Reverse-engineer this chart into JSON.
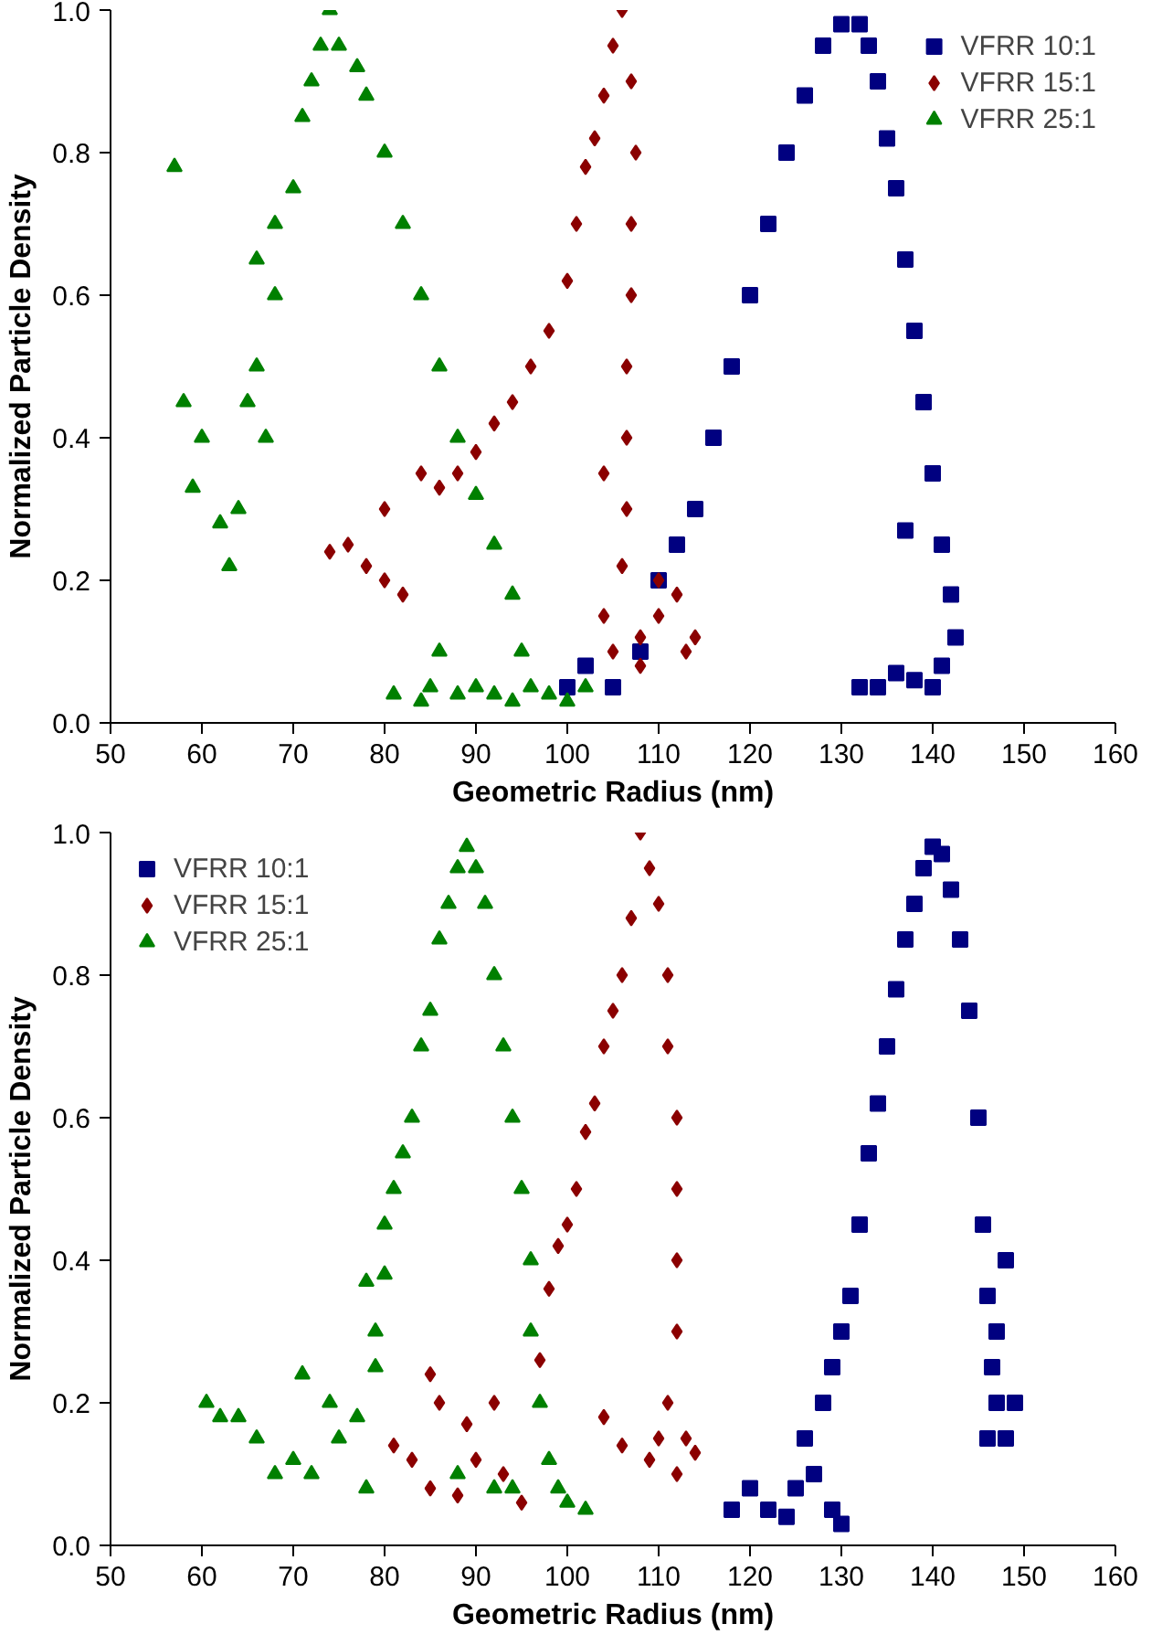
{
  "chart_data": [
    {
      "type": "scatter",
      "xlabel": "Geometric Radius (nm)",
      "ylabel": "Normalized Particle Density",
      "xlim": [
        50,
        160
      ],
      "ylim": [
        0,
        1
      ],
      "xticks": [
        50,
        60,
        70,
        80,
        90,
        100,
        110,
        120,
        130,
        140,
        150,
        160
      ],
      "yticks": [
        {
          "value": 0,
          "label": "0.0"
        },
        {
          "value": 0.2,
          "label": "0.2"
        },
        {
          "value": 0.4,
          "label": "0.4"
        },
        {
          "value": 0.6,
          "label": "0.6"
        },
        {
          "value": 0.8,
          "label": "0.8"
        },
        {
          "value": 1,
          "label": "1.0"
        }
      ],
      "grid": false,
      "legend": "top right",
      "series": [
        {
          "name": "VFRR 10:1",
          "color": "#000080",
          "marker": "square",
          "x": [
            100,
            102,
            105,
            108,
            110,
            112,
            114,
            116,
            118,
            120,
            122,
            124,
            126,
            128,
            130,
            132,
            133,
            134,
            135,
            136,
            137,
            138,
            139,
            140,
            141,
            142,
            142.5,
            141,
            140,
            138,
            136,
            134,
            132,
            137
          ],
          "values": [
            0.05,
            0.08,
            0.05,
            0.1,
            0.2,
            0.25,
            0.3,
            0.4,
            0.5,
            0.6,
            0.7,
            0.8,
            0.88,
            0.95,
            0.98,
            0.98,
            0.95,
            0.9,
            0.82,
            0.75,
            0.65,
            0.55,
            0.45,
            0.35,
            0.25,
            0.18,
            0.12,
            0.08,
            0.05,
            0.06,
            0.07,
            0.05,
            0.05,
            0.27
          ]
        },
        {
          "name": "VFRR 15:1",
          "color": "#8b0000",
          "marker": "diamond",
          "x": [
            74,
            76,
            78,
            80,
            82,
            80,
            84,
            86,
            88,
            90,
            92,
            94,
            96,
            98,
            100,
            101,
            102,
            103,
            104,
            105,
            106,
            107,
            107.5,
            107,
            107,
            106.5,
            106.5,
            106.5,
            106,
            104,
            105,
            108,
            110,
            112,
            114,
            113,
            110,
            108,
            104
          ],
          "values": [
            0.24,
            0.25,
            0.22,
            0.2,
            0.18,
            0.3,
            0.35,
            0.33,
            0.35,
            0.38,
            0.42,
            0.45,
            0.5,
            0.55,
            0.62,
            0.7,
            0.78,
            0.82,
            0.88,
            0.95,
            1.0,
            0.9,
            0.8,
            0.7,
            0.6,
            0.5,
            0.4,
            0.3,
            0.22,
            0.15,
            0.1,
            0.12,
            0.15,
            0.18,
            0.12,
            0.1,
            0.2,
            0.08,
            0.35
          ]
        },
        {
          "name": "VFRR 25:1",
          "color": "#008000",
          "marker": "triangle",
          "x": [
            57,
            58,
            59,
            60,
            62,
            63,
            64,
            65,
            66,
            67,
            68,
            66,
            68,
            70,
            71,
            72,
            73,
            74,
            75,
            77,
            78,
            80,
            82,
            84,
            86,
            88,
            90,
            92,
            94,
            95,
            96,
            98,
            100,
            102,
            92,
            88,
            85,
            84,
            81,
            86,
            90,
            94
          ],
          "values": [
            0.78,
            0.45,
            0.33,
            0.4,
            0.28,
            0.22,
            0.3,
            0.45,
            0.5,
            0.4,
            0.6,
            0.65,
            0.7,
            0.75,
            0.85,
            0.9,
            0.95,
            1.0,
            0.95,
            0.92,
            0.88,
            0.8,
            0.7,
            0.6,
            0.5,
            0.4,
            0.32,
            0.25,
            0.18,
            0.1,
            0.05,
            0.04,
            0.03,
            0.05,
            0.04,
            0.04,
            0.05,
            0.03,
            0.04,
            0.1,
            0.05,
            0.03
          ]
        }
      ]
    },
    {
      "type": "scatter",
      "xlabel": "Geometric Radius (nm)",
      "ylabel": "Normalized Particle Density",
      "xlim": [
        50,
        160
      ],
      "ylim": [
        0,
        1
      ],
      "xticks": [
        50,
        60,
        70,
        80,
        90,
        100,
        110,
        120,
        130,
        140,
        150,
        160
      ],
      "yticks": [
        {
          "value": 0,
          "label": "0.0"
        },
        {
          "value": 0.2,
          "label": "0.2"
        },
        {
          "value": 0.4,
          "label": "0.4"
        },
        {
          "value": 0.6,
          "label": "0.6"
        },
        {
          "value": 0.8,
          "label": "0.8"
        },
        {
          "value": 1,
          "label": "1.0"
        }
      ],
      "grid": false,
      "legend": "top left",
      "series": [
        {
          "name": "VFRR 10:1",
          "color": "#000080",
          "marker": "square",
          "x": [
            118,
            120,
            122,
            124,
            125,
            126,
            127,
            128,
            129,
            130,
            129,
            130,
            131,
            132,
            133,
            134,
            135,
            136,
            137,
            138,
            139,
            140,
            141,
            142,
            143,
            144,
            145,
            145.5,
            146,
            146.5,
            147,
            148,
            149,
            146,
            147,
            148
          ],
          "values": [
            0.05,
            0.08,
            0.05,
            0.04,
            0.08,
            0.15,
            0.1,
            0.2,
            0.05,
            0.03,
            0.25,
            0.3,
            0.35,
            0.45,
            0.55,
            0.62,
            0.7,
            0.78,
            0.85,
            0.9,
            0.95,
            0.98,
            0.97,
            0.92,
            0.85,
            0.75,
            0.6,
            0.45,
            0.35,
            0.25,
            0.2,
            0.15,
            0.2,
            0.15,
            0.3,
            0.4
          ]
        },
        {
          "name": "VFRR 15:1",
          "color": "#8b0000",
          "marker": "diamond",
          "x": [
            81,
            83,
            85,
            85,
            86,
            88,
            89,
            90,
            92,
            93,
            95,
            97,
            98,
            99,
            100,
            101,
            102,
            103,
            104,
            105,
            106,
            107,
            108,
            109,
            110,
            111,
            111,
            112,
            112,
            112,
            112,
            111,
            110,
            109,
            112,
            114,
            113,
            104,
            106
          ],
          "values": [
            0.14,
            0.12,
            0.24,
            0.08,
            0.2,
            0.07,
            0.17,
            0.12,
            0.2,
            0.1,
            0.06,
            0.26,
            0.36,
            0.42,
            0.45,
            0.5,
            0.58,
            0.62,
            0.7,
            0.75,
            0.8,
            0.88,
            1.0,
            0.95,
            0.9,
            0.8,
            0.7,
            0.6,
            0.5,
            0.4,
            0.3,
            0.2,
            0.15,
            0.12,
            0.1,
            0.13,
            0.15,
            0.18,
            0.14
          ]
        },
        {
          "name": "VFRR 25:1",
          "color": "#008000",
          "marker": "triangle",
          "x": [
            60.5,
            62,
            64,
            66,
            68,
            70,
            71,
            72,
            74,
            75,
            77,
            78,
            79,
            79,
            78,
            80,
            80,
            81,
            82,
            83,
            84,
            85,
            86,
            87,
            88,
            89,
            90,
            91,
            92,
            93,
            94,
            95,
            96,
            96,
            97,
            98,
            99,
            100,
            102,
            94,
            92,
            88
          ],
          "values": [
            0.2,
            0.18,
            0.18,
            0.15,
            0.1,
            0.12,
            0.24,
            0.1,
            0.2,
            0.15,
            0.18,
            0.08,
            0.25,
            0.3,
            0.37,
            0.38,
            0.45,
            0.5,
            0.55,
            0.6,
            0.7,
            0.75,
            0.85,
            0.9,
            0.95,
            0.98,
            0.95,
            0.9,
            0.8,
            0.7,
            0.6,
            0.5,
            0.4,
            0.3,
            0.2,
            0.12,
            0.08,
            0.06,
            0.05,
            0.08,
            0.08,
            0.1
          ]
        }
      ]
    }
  ]
}
